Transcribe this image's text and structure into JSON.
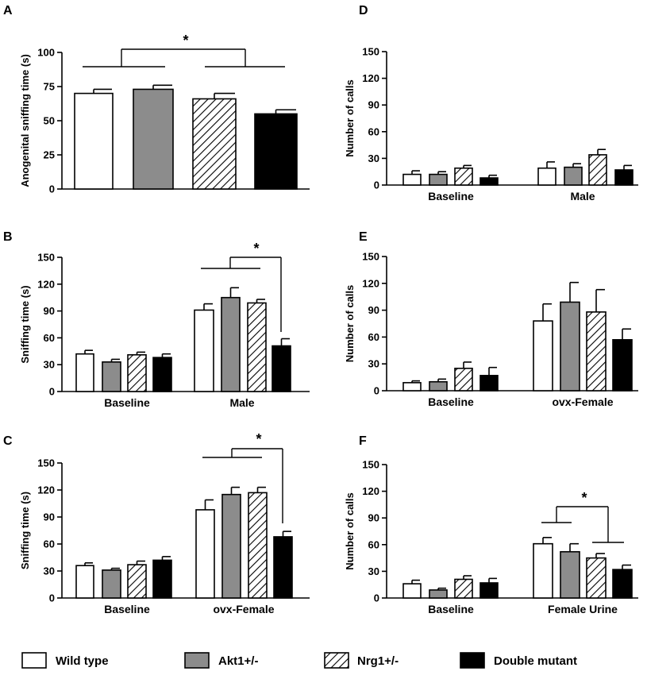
{
  "legend": {
    "items": [
      {
        "label": "Wild type",
        "pattern": "white"
      },
      {
        "label": "Akt1+/-",
        "pattern": "gray"
      },
      {
        "label": "Nrg1+/-",
        "pattern": "hatch"
      },
      {
        "label": "Double mutant",
        "pattern": "black"
      }
    ]
  },
  "colors": {
    "gray": "#8c8c8c",
    "black": "#000000",
    "white": "#ffffff"
  },
  "chart_data": [
    {
      "panel": "A",
      "type": "bar",
      "ylabel": "Anogenital sniffing time (s)",
      "ylim": [
        0,
        100
      ],
      "yticks": [
        0,
        25,
        50,
        75,
        100
      ],
      "ytick_labels": [
        "0",
        "25",
        "50",
        "75",
        "100"
      ],
      "groups": [
        {
          "label": "",
          "values": [
            70,
            73,
            66,
            55
          ],
          "errors": [
            3,
            3,
            4,
            3
          ]
        }
      ],
      "significance": "*"
    },
    {
      "panel": "B",
      "type": "bar",
      "ylabel": "Sniffing time (s)",
      "ylim": [
        0,
        150
      ],
      "yticks": [
        0,
        30,
        60,
        90,
        120,
        150
      ],
      "ytick_labels": [
        "0",
        "30",
        "60",
        "90",
        "120",
        "150"
      ],
      "groups": [
        {
          "label": "Baseline",
          "values": [
            42,
            33,
            41,
            38
          ],
          "errors": [
            4,
            3,
            3,
            4
          ]
        },
        {
          "label": "Male",
          "values": [
            91,
            105,
            99,
            51
          ],
          "errors": [
            7,
            11,
            4,
            8
          ]
        }
      ],
      "significance": "*"
    },
    {
      "panel": "C",
      "type": "bar",
      "ylabel": "Sniffing time (s)",
      "ylim": [
        0,
        150
      ],
      "yticks": [
        0,
        30,
        60,
        90,
        120,
        150
      ],
      "ytick_labels": [
        "0",
        "30",
        "60",
        "90",
        "120",
        "150"
      ],
      "groups": [
        {
          "label": "Baseline",
          "values": [
            36,
            31,
            37,
            42
          ],
          "errors": [
            3,
            2,
            4,
            4
          ]
        },
        {
          "label": "ovx-Female",
          "values": [
            98,
            115,
            117,
            68
          ],
          "errors": [
            11,
            8,
            6,
            6
          ]
        }
      ],
      "significance": "*"
    },
    {
      "panel": "D",
      "type": "bar",
      "ylabel": "Number of calls",
      "ylim": [
        0,
        150
      ],
      "yticks": [
        0,
        30,
        60,
        90,
        120,
        150
      ],
      "ytick_labels": [
        "0",
        "30",
        "60",
        "90",
        "120",
        "150"
      ],
      "groups": [
        {
          "label": "Baseline",
          "values": [
            12,
            12,
            19,
            8
          ],
          "errors": [
            4,
            3,
            3,
            3
          ]
        },
        {
          "label": "Male",
          "values": [
            19,
            20,
            34,
            17
          ],
          "errors": [
            7,
            4,
            6,
            5
          ]
        }
      ]
    },
    {
      "panel": "E",
      "type": "bar",
      "ylabel": "Number of calls",
      "ylim": [
        0,
        150
      ],
      "yticks": [
        0,
        30,
        60,
        90,
        120,
        150
      ],
      "ytick_labels": [
        "0",
        "30",
        "60",
        "90",
        "120",
        "150"
      ],
      "groups": [
        {
          "label": "Baseline",
          "values": [
            9,
            10,
            25,
            17
          ],
          "errors": [
            2,
            3,
            7,
            9
          ]
        },
        {
          "label": "ovx-Female",
          "values": [
            78,
            99,
            88,
            57
          ],
          "errors": [
            19,
            22,
            25,
            12
          ]
        }
      ]
    },
    {
      "panel": "F",
      "type": "bar",
      "ylabel": "Number of calls",
      "ylim": [
        0,
        150
      ],
      "yticks": [
        0,
        30,
        60,
        90,
        120,
        150
      ],
      "ytick_labels": [
        "0",
        "30",
        "60",
        "90",
        "120",
        "150"
      ],
      "groups": [
        {
          "label": "Baseline",
          "values": [
            16,
            9,
            21,
            17
          ],
          "errors": [
            4,
            2,
            4,
            5
          ]
        },
        {
          "label": "Female Urine",
          "values": [
            61,
            52,
            45,
            32
          ],
          "errors": [
            7,
            9,
            5,
            5
          ]
        }
      ],
      "significance": "*"
    }
  ]
}
